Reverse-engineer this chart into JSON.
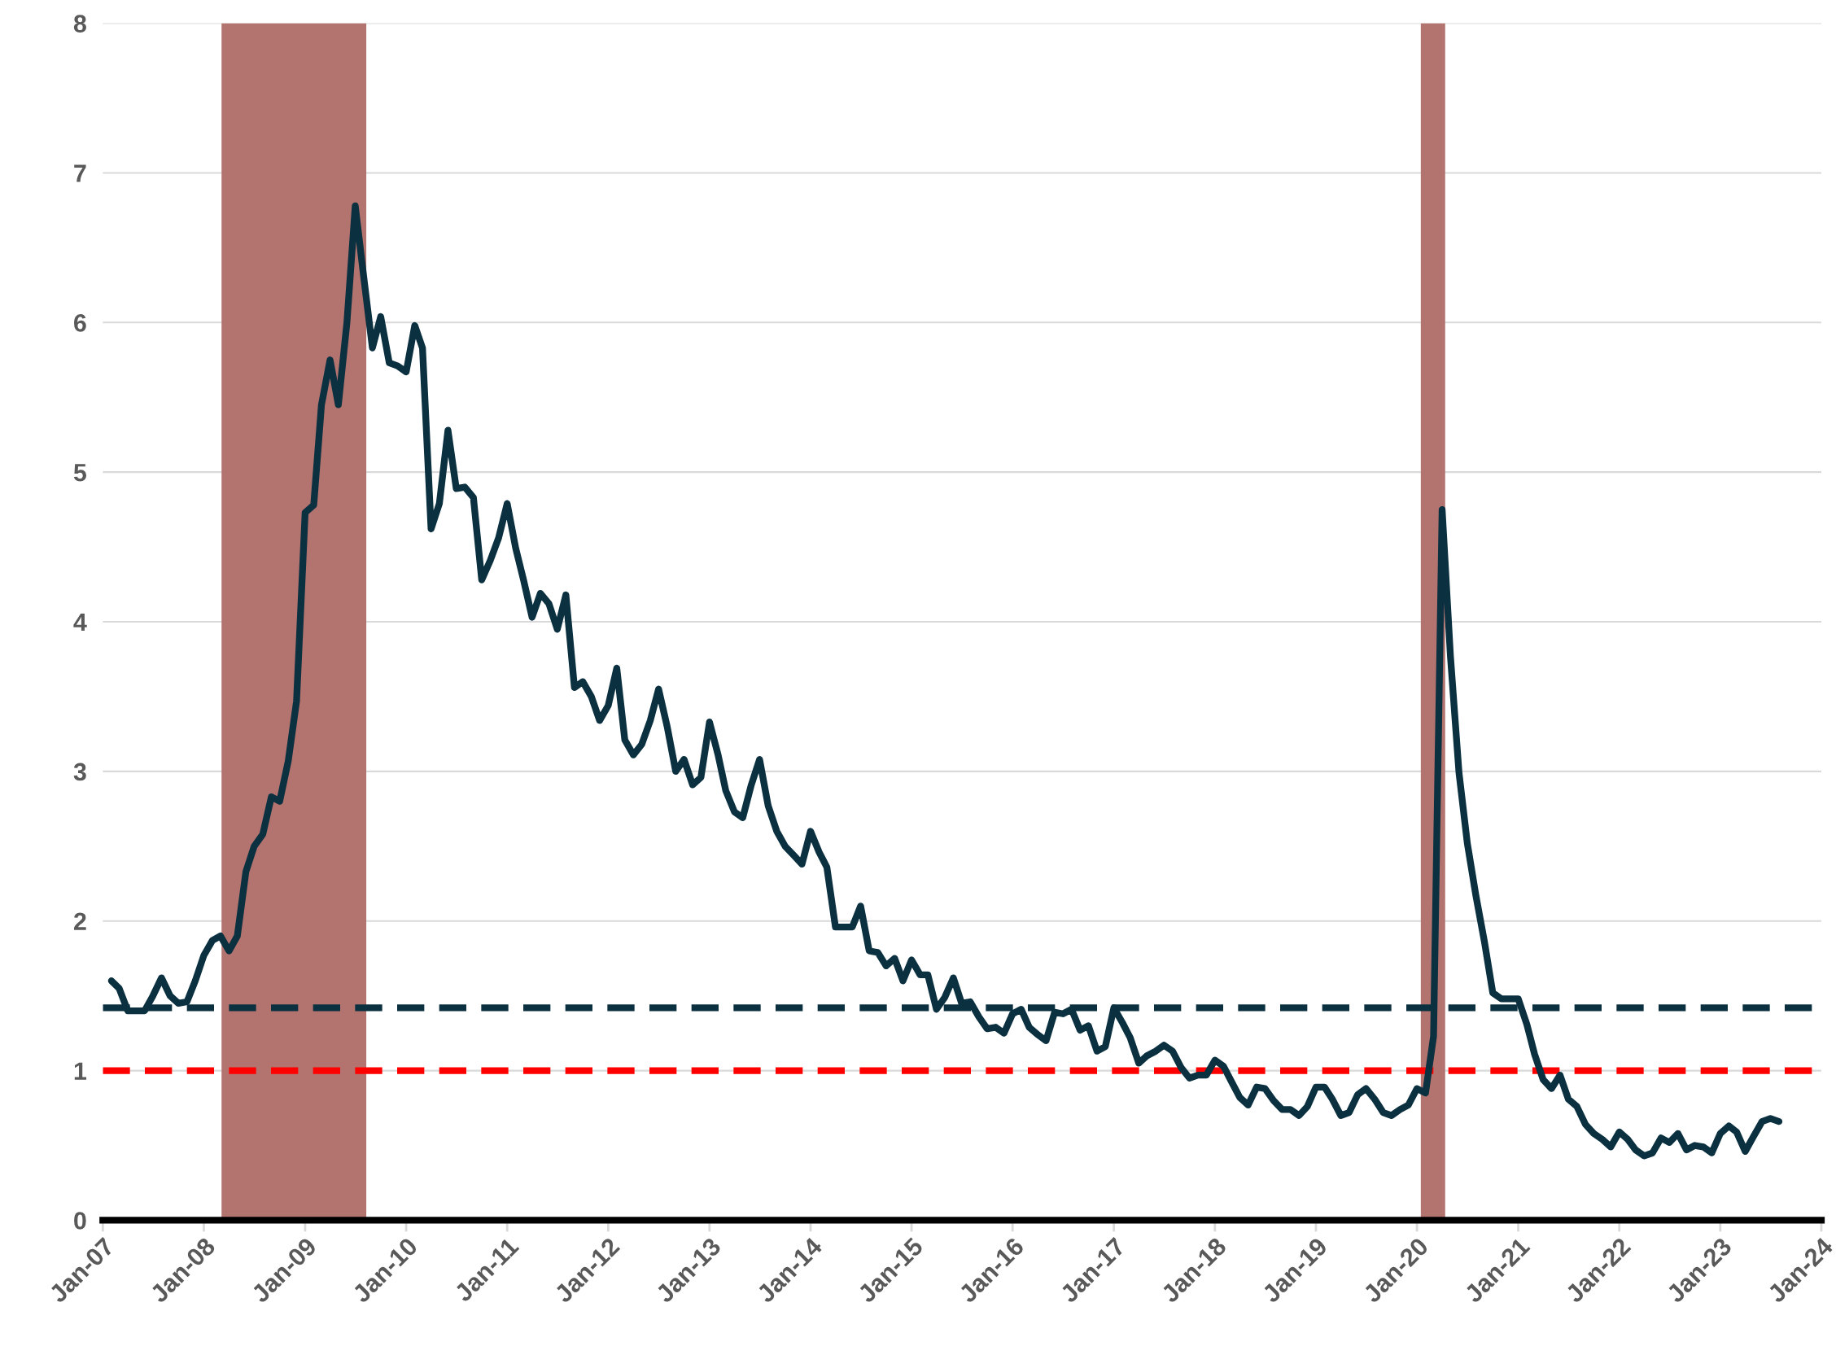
{
  "chart_data": {
    "type": "line",
    "x": [
      "2007-02",
      "2007-03",
      "2007-04",
      "2007-05",
      "2007-06",
      "2007-07",
      "2007-08",
      "2007-09",
      "2007-10",
      "2007-11",
      "2007-12",
      "2008-01",
      "2008-02",
      "2008-03",
      "2008-04",
      "2008-05",
      "2008-06",
      "2008-07",
      "2008-08",
      "2008-09",
      "2008-10",
      "2008-11",
      "2008-12",
      "2009-01",
      "2009-02",
      "2009-03",
      "2009-04",
      "2009-05",
      "2009-06",
      "2009-07",
      "2009-08",
      "2009-09",
      "2009-10",
      "2009-11",
      "2009-12",
      "2010-01",
      "2010-02",
      "2010-03",
      "2010-04",
      "2010-05",
      "2010-06",
      "2010-07",
      "2010-08",
      "2010-09",
      "2010-10",
      "2010-11",
      "2010-12",
      "2011-01",
      "2011-02",
      "2011-03",
      "2011-04",
      "2011-05",
      "2011-06",
      "2011-07",
      "2011-08",
      "2011-09",
      "2011-10",
      "2011-11",
      "2011-12",
      "2012-01",
      "2012-02",
      "2012-03",
      "2012-04",
      "2012-05",
      "2012-06",
      "2012-07",
      "2012-08",
      "2012-09",
      "2012-10",
      "2012-11",
      "2012-12",
      "2013-01",
      "2013-02",
      "2013-03",
      "2013-04",
      "2013-05",
      "2013-06",
      "2013-07",
      "2013-08",
      "2013-09",
      "2013-10",
      "2013-11",
      "2013-12",
      "2014-01",
      "2014-02",
      "2014-03",
      "2014-04",
      "2014-05",
      "2014-06",
      "2014-07",
      "2014-08",
      "2014-09",
      "2014-10",
      "2014-11",
      "2014-12",
      "2015-01",
      "2015-02",
      "2015-03",
      "2015-04",
      "2015-05",
      "2015-06",
      "2015-07",
      "2015-08",
      "2015-09",
      "2015-10",
      "2015-11",
      "2015-12",
      "2016-01",
      "2016-02",
      "2016-03",
      "2016-04",
      "2016-05",
      "2016-06",
      "2016-07",
      "2016-08",
      "2016-09",
      "2016-10",
      "2016-11",
      "2016-12",
      "2017-01",
      "2017-02",
      "2017-03",
      "2017-04",
      "2017-05",
      "2017-06",
      "2017-07",
      "2017-08",
      "2017-09",
      "2017-10",
      "2017-11",
      "2017-12",
      "2018-01",
      "2018-02",
      "2018-03",
      "2018-04",
      "2018-05",
      "2018-06",
      "2018-07",
      "2018-08",
      "2018-09",
      "2018-10",
      "2018-11",
      "2018-12",
      "2019-01",
      "2019-02",
      "2019-03",
      "2019-04",
      "2019-05",
      "2019-06",
      "2019-07",
      "2019-08",
      "2019-09",
      "2019-10",
      "2019-11",
      "2019-12",
      "2020-01",
      "2020-02",
      "2020-03",
      "2020-04",
      "2020-05",
      "2020-06",
      "2020-07",
      "2020-08",
      "2020-09",
      "2020-10",
      "2020-11",
      "2020-12",
      "2021-01",
      "2021-02",
      "2021-03",
      "2021-04",
      "2021-05",
      "2021-06",
      "2021-07",
      "2021-08",
      "2021-09",
      "2021-10",
      "2021-11",
      "2021-12",
      "2022-01",
      "2022-02",
      "2022-03",
      "2022-04",
      "2022-05",
      "2022-06",
      "2022-07",
      "2022-08",
      "2022-09",
      "2022-10",
      "2022-11",
      "2022-12",
      "2023-01",
      "2023-02",
      "2023-03",
      "2023-04",
      "2023-05",
      "2023-06",
      "2023-07",
      "2023-08"
    ],
    "series": [
      {
        "color": "#0b3040",
        "values": [
          1.6,
          1.55,
          1.4,
          1.4,
          1.4,
          1.5,
          1.62,
          1.5,
          1.45,
          1.46,
          1.6,
          1.77,
          1.87,
          1.9,
          1.8,
          1.9,
          2.33,
          2.5,
          2.58,
          2.83,
          2.8,
          3.07,
          3.47,
          4.73,
          4.78,
          5.45,
          5.75,
          5.45,
          6.0,
          6.78,
          6.3,
          5.83,
          6.04,
          5.73,
          5.71,
          5.67,
          5.98,
          5.83,
          4.62,
          4.79,
          5.28,
          4.89,
          4.9,
          4.83,
          4.28,
          4.41,
          4.56,
          4.79,
          4.49,
          4.28,
          4.03,
          4.19,
          4.12,
          3.95,
          4.18,
          3.56,
          3.6,
          3.5,
          3.34,
          3.44,
          3.69,
          3.21,
          3.11,
          3.18,
          3.34,
          3.55,
          3.3,
          3.0,
          3.08,
          2.91,
          2.96,
          3.33,
          3.11,
          2.87,
          2.73,
          2.69,
          2.91,
          3.08,
          2.77,
          2.6,
          2.5,
          2.44,
          2.38,
          2.6,
          2.46,
          2.36,
          1.96,
          1.96,
          1.96,
          2.1,
          1.8,
          1.79,
          1.7,
          1.75,
          1.6,
          1.74,
          1.64,
          1.64,
          1.41,
          1.49,
          1.62,
          1.45,
          1.46,
          1.36,
          1.28,
          1.29,
          1.25,
          1.38,
          1.41,
          1.29,
          1.24,
          1.2,
          1.39,
          1.38,
          1.41,
          1.27,
          1.3,
          1.13,
          1.16,
          1.42,
          1.32,
          1.22,
          1.05,
          1.1,
          1.13,
          1.17,
          1.13,
          1.02,
          0.95,
          0.97,
          0.97,
          1.07,
          1.03,
          0.93,
          0.82,
          0.77,
          0.89,
          0.88,
          0.8,
          0.74,
          0.74,
          0.7,
          0.76,
          0.89,
          0.89,
          0.81,
          0.7,
          0.72,
          0.84,
          0.88,
          0.81,
          0.72,
          0.7,
          0.74,
          0.77,
          0.88,
          0.85,
          1.23,
          4.75,
          3.77,
          2.99,
          2.52,
          2.17,
          1.86,
          1.52,
          1.48,
          1.48,
          1.48,
          1.31,
          1.11,
          0.94,
          0.88,
          0.97,
          0.81,
          0.76,
          0.64,
          0.58,
          0.54,
          0.49,
          0.59,
          0.54,
          0.47,
          0.43,
          0.45,
          0.55,
          0.52,
          0.58,
          0.47,
          0.5,
          0.49,
          0.45,
          0.58,
          0.63,
          0.59,
          0.46,
          0.56,
          0.66,
          0.68,
          0.66
        ]
      }
    ],
    "xlim": [
      "2007-01",
      "2024-01"
    ],
    "xticks": [
      {
        "value": "2007-01",
        "label": "Jan-07"
      },
      {
        "value": "2008-01",
        "label": "Jan-08"
      },
      {
        "value": "2009-01",
        "label": "Jan-09"
      },
      {
        "value": "2010-01",
        "label": "Jan-10"
      },
      {
        "value": "2011-01",
        "label": "Jan-11"
      },
      {
        "value": "2012-01",
        "label": "Jan-12"
      },
      {
        "value": "2013-01",
        "label": "Jan-13"
      },
      {
        "value": "2014-01",
        "label": "Jan-14"
      },
      {
        "value": "2015-01",
        "label": "Jan-15"
      },
      {
        "value": "2016-01",
        "label": "Jan-16"
      },
      {
        "value": "2017-01",
        "label": "Jan-17"
      },
      {
        "value": "2018-01",
        "label": "Jan-18"
      },
      {
        "value": "2019-01",
        "label": "Jan-19"
      },
      {
        "value": "2020-01",
        "label": "Jan-20"
      },
      {
        "value": "2021-01",
        "label": "Jan-21"
      },
      {
        "value": "2022-01",
        "label": "Jan-22"
      },
      {
        "value": "2023-01",
        "label": "Jan-23"
      },
      {
        "value": "2024-01",
        "label": "Jan-24"
      }
    ],
    "ylim": [
      0,
      8
    ],
    "yticks": [
      0,
      1,
      2,
      3,
      4,
      5,
      6,
      7,
      8
    ],
    "grid": "y",
    "marker": "none",
    "line_style": "solid",
    "ref_lines": [
      {
        "axis": "y",
        "value": 1.42,
        "color": "#0b3040",
        "line_style": "dashed"
      },
      {
        "axis": "y",
        "value": 1.0,
        "color": "#ff0000",
        "line_style": "dashed"
      }
    ],
    "bands": [
      {
        "axis": "x",
        "from": "2008-03-05",
        "to": "2009-08-10",
        "color": "#b37470"
      },
      {
        "axis": "x",
        "from": "2020-01-15",
        "to": "2020-04-12",
        "color": "#b37470"
      }
    ]
  }
}
